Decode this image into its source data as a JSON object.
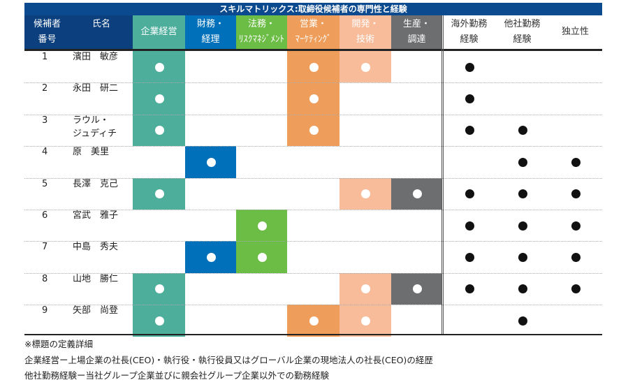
{
  "title": "スキルマトリックス:取締役候補者の専門性と経験",
  "headers": {
    "number": [
      "候補者",
      "番号"
    ],
    "name": "氏名",
    "skills": [
      {
        "lines": [
          "企業経営"
        ],
        "color": "#4DAE9C"
      },
      {
        "lines": [
          "財務・",
          "経理"
        ],
        "color": "#0070BA"
      },
      {
        "lines": [
          "法務・",
          "ﾘｽｸﾏﾈｼﾞﾒﾝﾄ"
        ],
        "color": "#6CBD45"
      },
      {
        "lines": [
          "営業・",
          "ﾏｰｹﾃｨﾝｸﾞ"
        ],
        "color": "#EE9D5A"
      },
      {
        "lines": [
          "開発・",
          "技術"
        ],
        "color": "#F9BC9A"
      },
      {
        "lines": [
          "生産・",
          "調達"
        ],
        "color": "#6D6E70"
      }
    ],
    "experience": [
      [
        "海外勤務",
        "経験"
      ],
      [
        "他社勤務",
        "経験"
      ],
      [
        "独立性"
      ]
    ]
  },
  "rows": [
    {
      "no": "1",
      "name": [
        "濱田　敏彦"
      ],
      "skills": [
        1,
        0,
        0,
        1,
        1,
        0
      ],
      "exp": [
        1,
        0,
        0
      ]
    },
    {
      "no": "2",
      "name": [
        "永田　研二"
      ],
      "skills": [
        1,
        0,
        0,
        1,
        0,
        0
      ],
      "exp": [
        1,
        0,
        0
      ]
    },
    {
      "no": "3",
      "name": [
        "ラウル・",
        "ジュディチ"
      ],
      "skills": [
        1,
        0,
        0,
        1,
        0,
        0
      ],
      "exp": [
        1,
        1,
        0
      ]
    },
    {
      "no": "4",
      "name": [
        "原　美里"
      ],
      "skills": [
        0,
        1,
        0,
        0,
        0,
        0
      ],
      "exp": [
        0,
        1,
        1
      ]
    },
    {
      "no": "5",
      "name": [
        "長澤　克己"
      ],
      "skills": [
        1,
        0,
        0,
        0,
        1,
        1
      ],
      "exp": [
        1,
        1,
        1
      ]
    },
    {
      "no": "6",
      "name": [
        "宮武　雅子"
      ],
      "skills": [
        0,
        0,
        1,
        0,
        0,
        0
      ],
      "exp": [
        1,
        1,
        1
      ]
    },
    {
      "no": "7",
      "name": [
        "中島　秀夫"
      ],
      "skills": [
        0,
        1,
        1,
        0,
        0,
        0
      ],
      "exp": [
        1,
        1,
        1
      ]
    },
    {
      "no": "8",
      "name": [
        "山地　勝仁"
      ],
      "skills": [
        1,
        0,
        0,
        0,
        1,
        1
      ],
      "exp": [
        1,
        1,
        1
      ]
    },
    {
      "no": "9",
      "name": [
        "矢部　尚登"
      ],
      "skills": [
        1,
        0,
        0,
        1,
        1,
        0
      ],
      "exp": [
        0,
        1,
        0
      ]
    }
  ],
  "notes": [
    "※標題の定義詳細",
    "企業経営ー上場企業の社長(CEO)・執行役・執行役員又はグローバル企業の現地法人の社長(CEO)の経歴",
    "他社勤務経験ー当社グループ企業並びに親会社グループ企業以外での勤務経験"
  ]
}
